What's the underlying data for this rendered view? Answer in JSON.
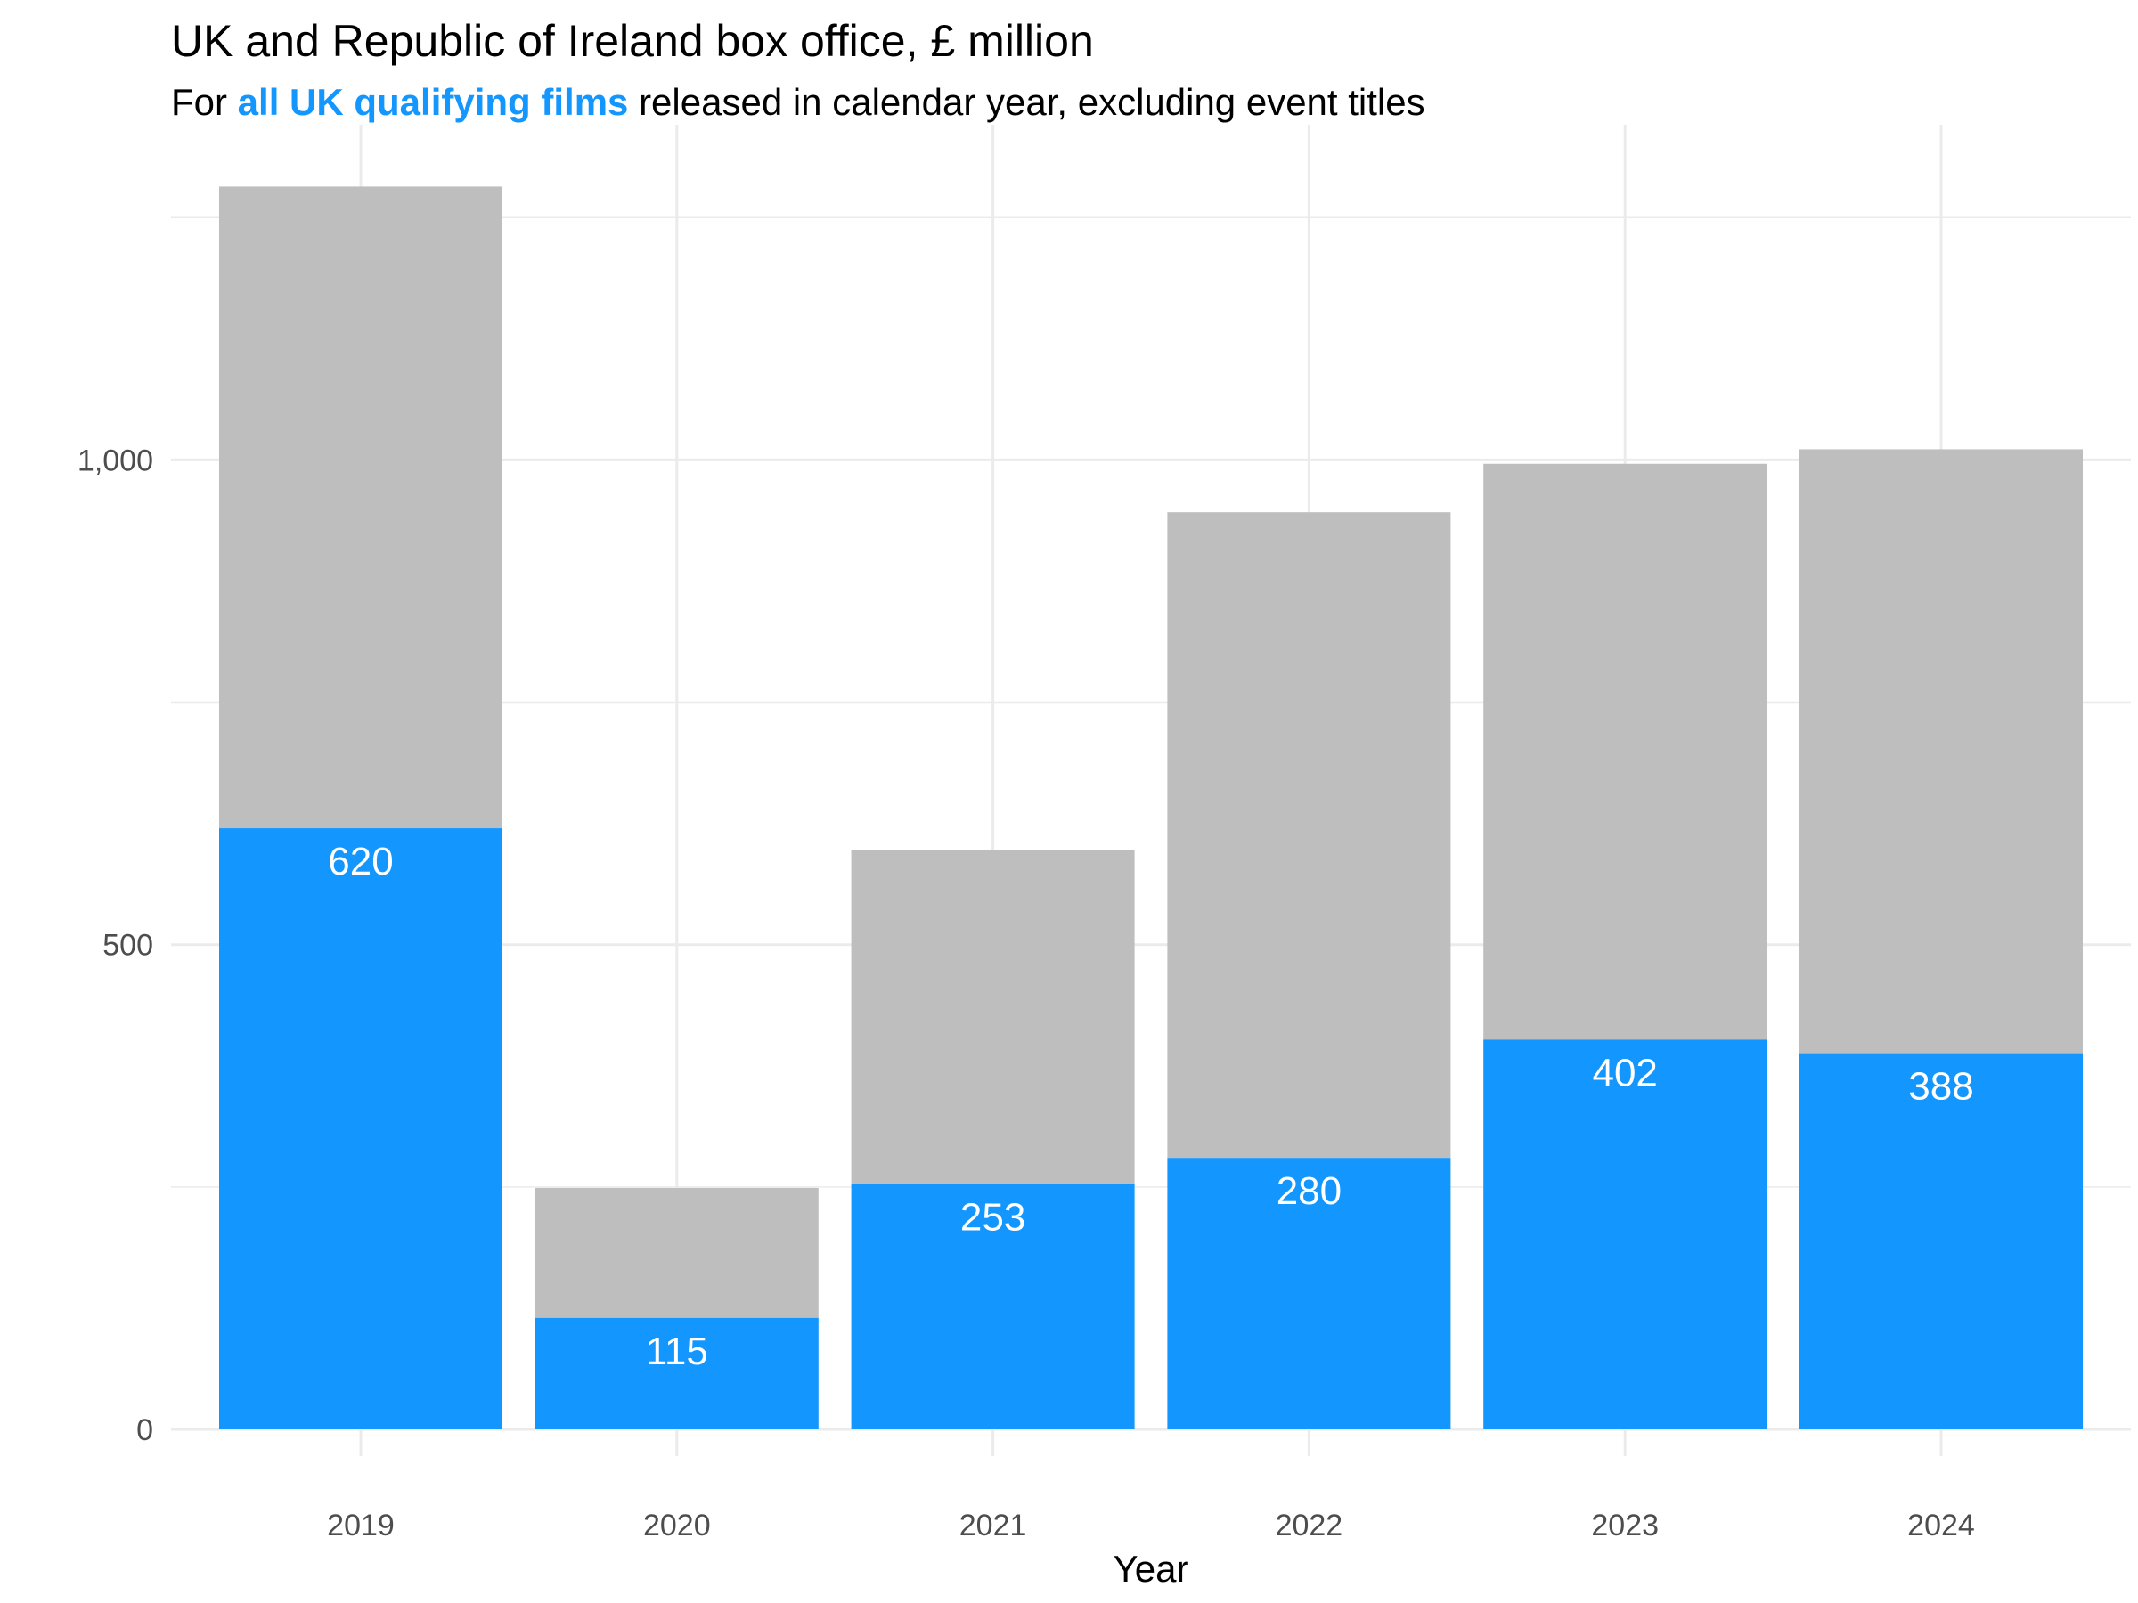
{
  "chart_data": {
    "type": "bar",
    "stacked": true,
    "title": "UK and Republic of Ireland box office, £ million",
    "subtitle": {
      "before": "For ",
      "highlight": "all UK qualifying films",
      "after": " released in calendar year, excluding event titles"
    },
    "xlabel": "Year",
    "ylabel": "",
    "categories": [
      "2019",
      "2020",
      "2021",
      "2022",
      "2023",
      "2024"
    ],
    "series": [
      {
        "values": [
          620,
          115,
          253,
          280,
          402,
          388
        ],
        "color": "#1396fd",
        "labels": [
          "620",
          "115",
          "253",
          "280",
          "402",
          "388"
        ]
      },
      {
        "values": [
          662,
          134,
          345,
          666,
          594,
          623
        ],
        "color": "#bebebe"
      }
    ],
    "totals": [
      1282,
      249,
      598,
      946,
      996,
      1011
    ],
    "ylim": [
      0,
      1250
    ],
    "y_ticks": [
      0,
      500,
      1000
    ],
    "y_tick_labels": [
      "0",
      "500",
      "1,000"
    ],
    "y_minor_ticks": [
      250,
      750,
      1250
    ],
    "grid": true,
    "legend": "none"
  }
}
